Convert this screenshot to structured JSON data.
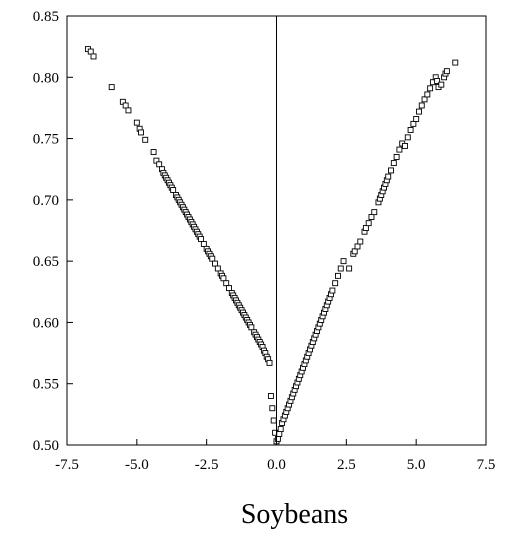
{
  "chart_data": {
    "type": "scatter",
    "title": "",
    "xlabel": "Soybeans",
    "ylabel": "",
    "xlim": [
      -7.5,
      7.5
    ],
    "ylim": [
      0.5,
      0.85
    ],
    "x_ticks": [
      "-7.5",
      "-5.0",
      "-2.5",
      "0.0",
      "2.5",
      "5.0",
      "7.5"
    ],
    "y_ticks": [
      "0.85",
      "0.80",
      "0.75",
      "0.70",
      "0.65",
      "0.60",
      "0.55",
      "0.50"
    ],
    "x_tick_values": [
      -7.5,
      -5.0,
      -2.5,
      0.0,
      2.5,
      5.0,
      7.5
    ],
    "y_tick_values": [
      0.85,
      0.8,
      0.75,
      0.7,
      0.65,
      0.6,
      0.55,
      0.5
    ],
    "vertical_reference_line_x": 0.0,
    "grid": false,
    "marker": "open-square",
    "series": [
      {
        "x": [
          -6.75,
          -6.65,
          -6.55,
          -5.9,
          -5.5,
          -5.4,
          -5.3,
          -5.0,
          -4.9,
          -4.85,
          -4.7,
          -4.4,
          -4.3,
          -4.2,
          -4.1,
          -4.05,
          -4.0,
          -3.95,
          -3.9,
          -3.85,
          -3.8,
          -3.75,
          -3.7,
          -3.6,
          -3.55,
          -3.5,
          -3.45,
          -3.4,
          -3.35,
          -3.3,
          -3.25,
          -3.2,
          -3.15,
          -3.1,
          -3.05,
          -3.0,
          -2.95,
          -2.9,
          -2.85,
          -2.8,
          -2.75,
          -2.7,
          -2.6,
          -2.5,
          -2.45,
          -2.4,
          -2.35,
          -2.3,
          -2.2,
          -2.1,
          -2.0,
          -1.95,
          -1.9,
          -1.8,
          -1.7,
          -1.6,
          -1.55,
          -1.5,
          -1.45,
          -1.4,
          -1.35,
          -1.3,
          -1.25,
          -1.2,
          -1.15,
          -1.1,
          -1.05,
          -1.0,
          -0.95,
          -0.9,
          -0.8,
          -0.75,
          -0.7,
          -0.65,
          -0.6,
          -0.55,
          -0.5,
          -0.45,
          -0.4,
          -0.35,
          -0.3,
          -0.25,
          -0.2,
          -0.15,
          -0.1,
          -0.05,
          0.0,
          0.05,
          0.1,
          0.15,
          0.2,
          0.25,
          0.3,
          0.35,
          0.4,
          0.45,
          0.5,
          0.55,
          0.6,
          0.65,
          0.7,
          0.75,
          0.8,
          0.85,
          0.9,
          0.95,
          1.0,
          1.05,
          1.1,
          1.15,
          1.2,
          1.25,
          1.3,
          1.35,
          1.4,
          1.45,
          1.5,
          1.55,
          1.6,
          1.65,
          1.7,
          1.75,
          1.8,
          1.85,
          1.9,
          1.95,
          2.0,
          2.1,
          2.2,
          2.3,
          2.4,
          2.6,
          2.75,
          2.8,
          2.9,
          3.0,
          3.15,
          3.2,
          3.3,
          3.4,
          3.5,
          3.65,
          3.7,
          3.75,
          3.8,
          3.85,
          3.9,
          3.95,
          4.0,
          4.1,
          4.2,
          4.3,
          4.4,
          4.5,
          4.6,
          4.7,
          4.8,
          4.9,
          5.0,
          5.1,
          5.2,
          5.3,
          5.4,
          5.5,
          5.6,
          5.7,
          5.75,
          5.8,
          5.9,
          6.0,
          6.05,
          6.1,
          6.4
        ],
        "y": [
          0.823,
          0.821,
          0.817,
          0.792,
          0.78,
          0.777,
          0.773,
          0.763,
          0.758,
          0.755,
          0.749,
          0.739,
          0.732,
          0.729,
          0.725,
          0.722,
          0.72,
          0.718,
          0.716,
          0.714,
          0.712,
          0.71,
          0.708,
          0.704,
          0.702,
          0.7,
          0.698,
          0.696,
          0.694,
          0.692,
          0.69,
          0.688,
          0.686,
          0.684,
          0.682,
          0.68,
          0.678,
          0.676,
          0.674,
          0.672,
          0.67,
          0.668,
          0.664,
          0.66,
          0.658,
          0.656,
          0.654,
          0.652,
          0.648,
          0.644,
          0.64,
          0.638,
          0.636,
          0.632,
          0.628,
          0.624,
          0.622,
          0.62,
          0.618,
          0.616,
          0.614,
          0.612,
          0.61,
          0.608,
          0.606,
          0.604,
          0.602,
          0.6,
          0.598,
          0.596,
          0.592,
          0.59,
          0.588,
          0.586,
          0.584,
          0.582,
          0.58,
          0.577,
          0.575,
          0.572,
          0.57,
          0.567,
          0.54,
          0.53,
          0.52,
          0.51,
          0.503,
          0.505,
          0.509,
          0.513,
          0.518,
          0.521,
          0.524,
          0.527,
          0.53,
          0.533,
          0.536,
          0.539,
          0.542,
          0.545,
          0.548,
          0.551,
          0.554,
          0.557,
          0.56,
          0.563,
          0.566,
          0.569,
          0.572,
          0.575,
          0.578,
          0.581,
          0.584,
          0.587,
          0.59,
          0.593,
          0.596,
          0.599,
          0.602,
          0.605,
          0.608,
          0.611,
          0.614,
          0.617,
          0.62,
          0.623,
          0.626,
          0.632,
          0.638,
          0.644,
          0.65,
          0.644,
          0.656,
          0.658,
          0.662,
          0.666,
          0.674,
          0.677,
          0.681,
          0.686,
          0.69,
          0.698,
          0.701,
          0.704,
          0.707,
          0.71,
          0.713,
          0.716,
          0.719,
          0.724,
          0.73,
          0.735,
          0.741,
          0.746,
          0.744,
          0.751,
          0.757,
          0.762,
          0.766,
          0.772,
          0.777,
          0.782,
          0.786,
          0.791,
          0.796,
          0.8,
          0.797,
          0.792,
          0.794,
          0.8,
          0.803,
          0.805,
          0.812
        ]
      }
    ]
  }
}
